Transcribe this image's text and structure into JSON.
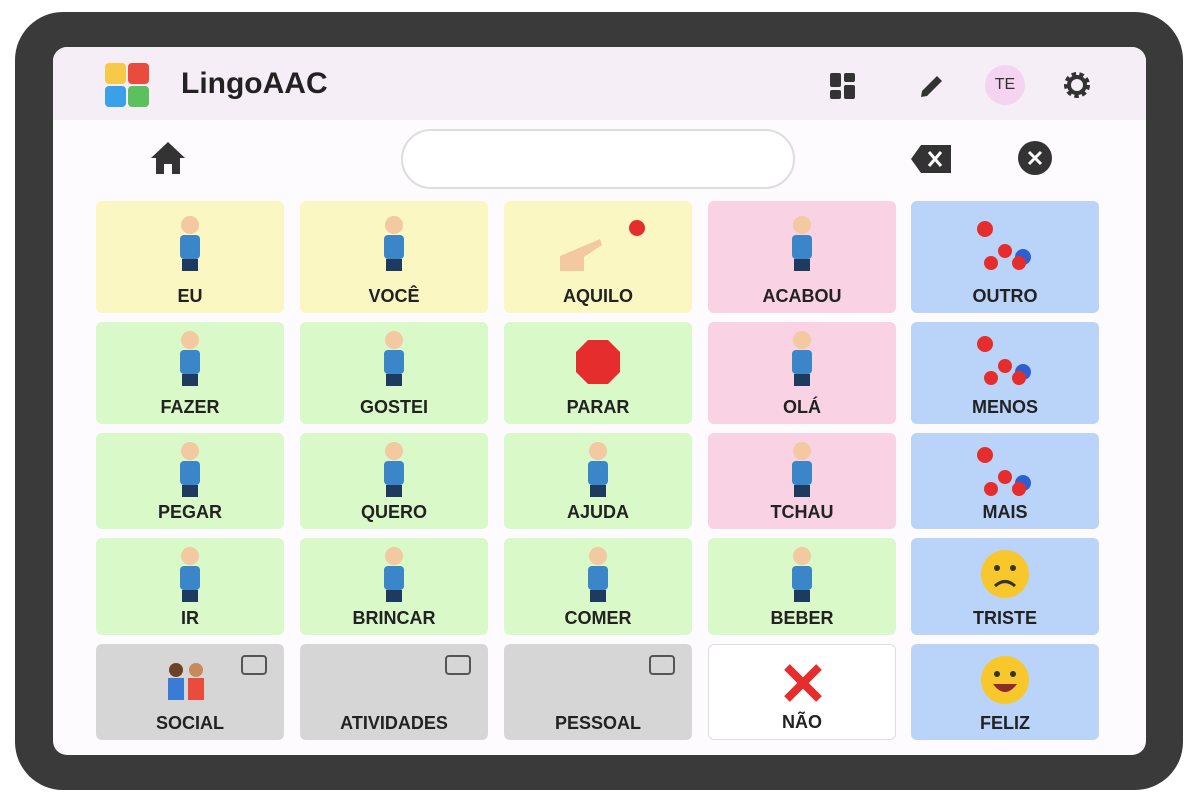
{
  "header": {
    "title": "LingoAAC",
    "avatar": "TE"
  },
  "grid": {
    "tiles": [
      {
        "label": "EU",
        "color": "#fbf7c2"
      },
      {
        "label": "VOCÊ",
        "color": "#fbf7c2"
      },
      {
        "label": "AQUILO",
        "color": "#fbf7c2"
      },
      {
        "label": "ACABOU",
        "color": "#f9d2e3"
      },
      {
        "label": "OUTRO",
        "color": "#b9d3f9"
      },
      {
        "label": "FAZER",
        "color": "#d9f9c9"
      },
      {
        "label": "GOSTEI",
        "color": "#d9f9c9"
      },
      {
        "label": "PARAR",
        "color": "#d9f9c9"
      },
      {
        "label": "OLÁ",
        "color": "#f9d2e3"
      },
      {
        "label": "MENOS",
        "color": "#b9d3f9"
      },
      {
        "label": "PEGAR",
        "color": "#d9f9c9"
      },
      {
        "label": "QUERO",
        "color": "#d9f9c9"
      },
      {
        "label": "AJUDA",
        "color": "#d9f9c9"
      },
      {
        "label": "TCHAU",
        "color": "#f9d2e3"
      },
      {
        "label": "MAIS",
        "color": "#b9d3f9"
      },
      {
        "label": "IR",
        "color": "#d9f9c9"
      },
      {
        "label": "BRINCAR",
        "color": "#d9f9c9"
      },
      {
        "label": "COMER",
        "color": "#d9f9c9"
      },
      {
        "label": "BEBER",
        "color": "#d9f9c9"
      },
      {
        "label": "TRISTE",
        "color": "#b9d3f9"
      },
      {
        "label": "SOCIAL",
        "color": "#d6d6d6"
      },
      {
        "label": "ATIVIDADES",
        "color": "#d6d6d6"
      },
      {
        "label": "PESSOAL",
        "color": "#d6d6d6"
      },
      {
        "label": "NÃO",
        "color": "#ffffff"
      },
      {
        "label": "FELIZ",
        "color": "#b9d3f9"
      }
    ]
  }
}
